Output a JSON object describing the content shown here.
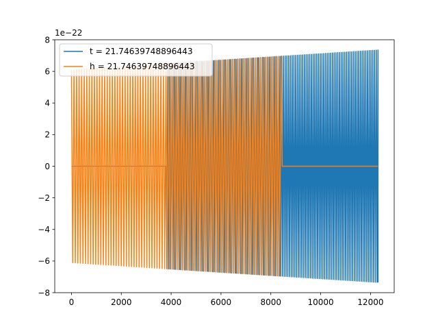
{
  "chart_data": {
    "type": "line",
    "title": "",
    "xlabel": "",
    "ylabel": "",
    "y_offset_text": "1e−22",
    "xlim": [
      -670,
      12950
    ],
    "ylim": [
      -8,
      8
    ],
    "x_ticks": [
      0,
      2000,
      4000,
      6000,
      8000,
      10000,
      12000
    ],
    "x_tick_labels": [
      "0",
      "2000",
      "4000",
      "6000",
      "8000",
      "10000",
      "12000"
    ],
    "y_ticks": [
      -8,
      -6,
      -4,
      -2,
      0,
      2,
      4,
      6,
      8
    ],
    "y_tick_labels": [
      "−8",
      "−6",
      "−4",
      "−2",
      "0",
      "2",
      "4",
      "6",
      "8"
    ],
    "grid": false,
    "legend_position": "upper-left",
    "series": [
      {
        "name": "t = 21.74639748896443",
        "color": "#1f77b4",
        "x_range": [
          0,
          12300
        ],
        "zero_until": 3800,
        "amplitude_start": 6.1,
        "amplitude_end": 7.35,
        "oscillation_count": 175
      },
      {
        "name": "h = 21.74639748896443",
        "color": "#ff7f0e",
        "x_range": [
          0,
          12300
        ],
        "zero_after": 8450,
        "amplitude_start": 6.1,
        "amplitude_end": 7.35,
        "oscillation_count": 120
      }
    ]
  }
}
